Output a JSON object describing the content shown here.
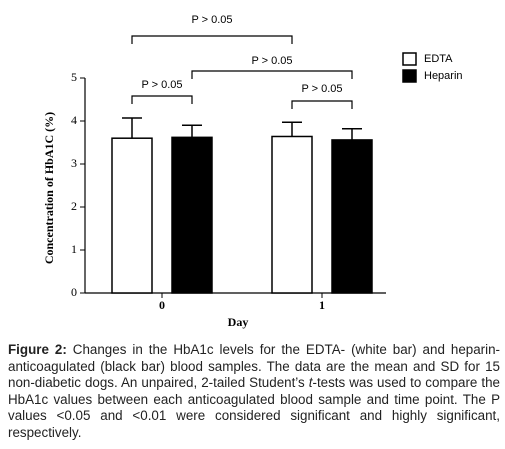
{
  "chart_data": {
    "type": "bar",
    "x_label": "Day",
    "y_label": "Concentration of HbA1C (%)",
    "categories": [
      "0",
      "1"
    ],
    "series": [
      {
        "name": "EDTA",
        "color": "#ffffff",
        "values": [
          3.6,
          3.64
        ],
        "errors": [
          0.47,
          0.33
        ]
      },
      {
        "name": "Heparin",
        "color": "#000000",
        "values": [
          3.62,
          3.56
        ],
        "errors": [
          0.28,
          0.26
        ]
      }
    ],
    "ylim": [
      0,
      5
    ],
    "yticks": [
      0,
      1,
      2,
      3,
      4,
      5
    ],
    "grid": false,
    "legend": "upper right",
    "annotations": [
      "P > 0.05",
      "P > 0.05",
      "P > 0.05",
      "P > 0.05"
    ]
  },
  "caption": {
    "label": "Figure 2:",
    "text_before": " Changes in the HbA1c levels for the EDTA- (white bar) and heparin-anticoagulated (black bar) blood samples. The data are the mean and SD for 15 non-diabetic dogs. An unpaired, 2-tailed Student’s ",
    "italic": "t",
    "text_after": "-tests was used to compare the HbA1c values between each anticoagulated blood sample and time point. The P values <0.05 and <0.01 were considered significant and highly significant, respectively."
  }
}
